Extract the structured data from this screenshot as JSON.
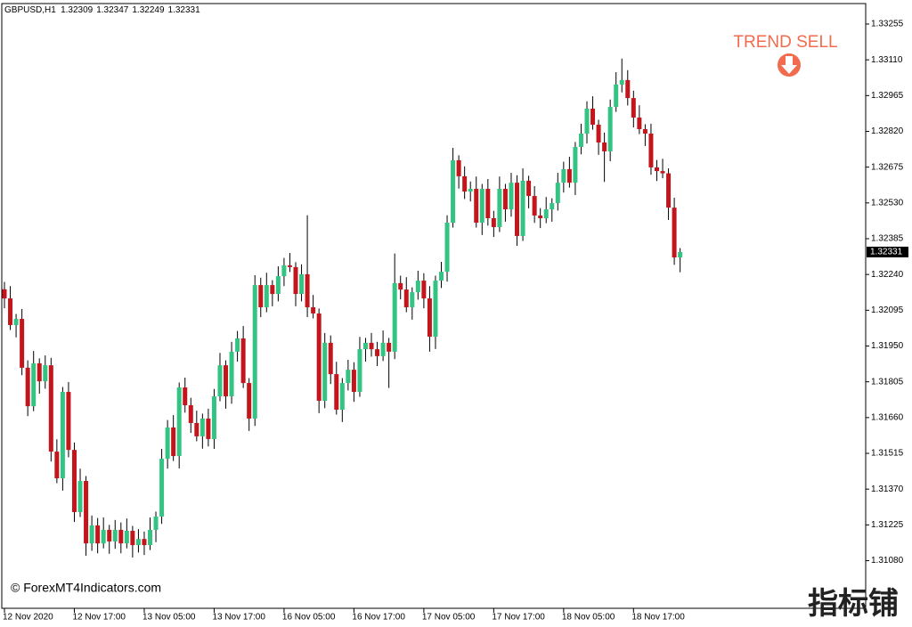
{
  "chart_data": {
    "type": "candlestick",
    "title": "GBPUSD,H1",
    "annotation": "TREND SELL",
    "watermark": "© ForexMT4Indicators.com",
    "corner_mark": "指标铺",
    "up_color": "#33c483",
    "down_color": "#c2161c",
    "wick_color": "#000000",
    "annotation_color": "#f26b4e",
    "ylim": [
      1.30887,
      1.33338
    ],
    "yticks": [
      1.33255,
      {
        "value": 1.3311,
        "label": "1.33110"
      },
      1.32965,
      {
        "value": 1.3282,
        "label": "1.32820"
      },
      1.32675,
      {
        "value": 1.3253,
        "label": "1.32530"
      },
      1.32385,
      {
        "value": 1.3224,
        "label": "1.32240"
      },
      1.32095,
      {
        "value": 1.3195,
        "label": "1.31950"
      },
      1.31805,
      {
        "value": 1.3166,
        "label": "1.31660"
      },
      1.31515,
      {
        "value": 1.3137,
        "label": "1.31370"
      },
      1.31225,
      {
        "value": 1.3108,
        "label": "1.31080"
      }
    ],
    "xticks": [
      {
        "value": 0,
        "label": "12 Nov 2020"
      },
      {
        "value": 12,
        "label": "12 Nov 17:00"
      },
      {
        "value": 24,
        "label": "13 Nov 05:00"
      },
      {
        "value": 36,
        "label": "13 Nov 17:00"
      },
      {
        "value": 48,
        "label": "16 Nov 05:00"
      },
      {
        "value": 60,
        "label": "16 Nov 17:00"
      },
      {
        "value": 72,
        "label": "17 Nov 05:00"
      },
      {
        "value": 84,
        "label": "17 Nov 17:00"
      },
      {
        "value": 96,
        "label": "18 Nov 05:00"
      },
      {
        "value": 108,
        "label": "18 Nov 17:00"
      }
    ],
    "ohlc": [
      [
        1.3218,
        1.3221,
        1.32103,
        1.32143
      ],
      [
        1.32143,
        1.32193,
        1.32015,
        1.32035
      ],
      [
        1.32035,
        1.3208,
        1.31985,
        1.3206
      ],
      [
        1.3206,
        1.321,
        1.31832,
        1.31862
      ],
      [
        1.31862,
        1.31892,
        1.31666,
        1.31706
      ],
      [
        1.31706,
        1.3193,
        1.31686,
        1.3188
      ],
      [
        1.3188,
        1.319,
        1.31757,
        1.31807
      ],
      [
        1.31807,
        1.31912,
        1.31777,
        1.31872
      ],
      [
        1.31872,
        1.31902,
        1.31482,
        1.31522
      ],
      [
        1.31522,
        1.31572,
        1.31394,
        1.31414
      ],
      [
        1.31414,
        1.31784,
        1.31364,
        1.31764
      ],
      [
        1.31764,
        1.31804,
        1.31499,
        1.31529
      ],
      [
        1.31529,
        1.31559,
        1.31237,
        1.31277
      ],
      [
        1.31277,
        1.31453,
        1.31257,
        1.31403
      ],
      [
        1.31403,
        1.31423,
        1.311,
        1.3115
      ],
      [
        1.3115,
        1.31263,
        1.3112,
        1.31223
      ],
      [
        1.31223,
        1.31253,
        1.3111,
        1.3115
      ],
      [
        1.3115,
        1.31255,
        1.3113,
        1.31205
      ],
      [
        1.31205,
        1.31225,
        1.31108,
        1.31158
      ],
      [
        1.31158,
        1.31245,
        1.31128,
        1.31205
      ],
      [
        1.31205,
        1.31235,
        1.3111,
        1.3115
      ],
      [
        1.3115,
        1.31251,
        1.3113,
        1.31201
      ],
      [
        1.31201,
        1.31221,
        1.31093,
        1.31143
      ],
      [
        1.31143,
        1.31208,
        1.31113,
        1.31168
      ],
      [
        1.31168,
        1.31198,
        1.31103,
        1.31143
      ],
      [
        1.31143,
        1.31255,
        1.31123,
        1.31205
      ],
      [
        1.31205,
        1.31279,
        1.31155,
        1.31259
      ],
      [
        1.31259,
        1.31533,
        1.31229,
        1.31493
      ],
      [
        1.31493,
        1.3165,
        1.31453,
        1.3162
      ],
      [
        1.3162,
        1.3167,
        1.31484,
        1.31504
      ],
      [
        1.31504,
        1.31802,
        1.31454,
        1.31782
      ],
      [
        1.31782,
        1.31822,
        1.3168,
        1.3171
      ],
      [
        1.3171,
        1.3174,
        1.31598,
        1.31638
      ],
      [
        1.31638,
        1.31688,
        1.31564,
        1.31584
      ],
      [
        1.31584,
        1.31676,
        1.31534,
        1.31656
      ],
      [
        1.31656,
        1.31696,
        1.31543,
        1.31573
      ],
      [
        1.31573,
        1.31776,
        1.31533,
        1.31746
      ],
      [
        1.31746,
        1.31922,
        1.31726,
        1.31872
      ],
      [
        1.31872,
        1.31892,
        1.31696,
        1.31746
      ],
      [
        1.31746,
        1.31967,
        1.31716,
        1.31927
      ],
      [
        1.31927,
        1.32011,
        1.31887,
        1.31981
      ],
      [
        1.31981,
        1.32031,
        1.3178,
        1.318
      ],
      [
        1.318,
        1.3182,
        1.31606,
        1.31656
      ],
      [
        1.31656,
        1.32237,
        1.31626,
        1.32197
      ],
      [
        1.32197,
        1.32227,
        1.32067,
        1.32107
      ],
      [
        1.32107,
        1.32247,
        1.32087,
        1.32197
      ],
      [
        1.32197,
        1.32217,
        1.32111,
        1.32161
      ],
      [
        1.32161,
        1.32273,
        1.32131,
        1.32233
      ],
      [
        1.32233,
        1.32307,
        1.32193,
        1.32277
      ],
      [
        1.32277,
        1.32327,
        1.3225,
        1.3227
      ],
      [
        1.3227,
        1.3229,
        1.32111,
        1.32161
      ],
      [
        1.32161,
        1.32281,
        1.32131,
        1.32241
      ],
      [
        1.32241,
        1.3248,
        1.32067,
        1.32107
      ],
      [
        1.32107,
        1.32157,
        1.32062,
        1.32082
      ],
      [
        1.32082,
        1.32102,
        1.31678,
        1.31728
      ],
      [
        1.31728,
        1.32003,
        1.31698,
        1.31963
      ],
      [
        1.31963,
        1.31993,
        1.31796,
        1.31836
      ],
      [
        1.31836,
        1.31886,
        1.31672,
        1.31692
      ],
      [
        1.31692,
        1.3182,
        1.31642,
        1.318
      ],
      [
        1.318,
        1.31894,
        1.3177,
        1.31854
      ],
      [
        1.31854,
        1.31884,
        1.31724,
        1.31764
      ],
      [
        1.31764,
        1.31987,
        1.31744,
        1.31937
      ],
      [
        1.31937,
        1.31983,
        1.31887,
        1.31963
      ],
      [
        1.31963,
        1.32003,
        1.31907,
        1.31937
      ],
      [
        1.31937,
        1.31967,
        1.31869,
        1.31909
      ],
      [
        1.31909,
        1.32013,
        1.31889,
        1.31963
      ],
      [
        1.31963,
        1.31983,
        1.3178,
        1.31927
      ],
      [
        1.31927,
        1.32325,
        1.31897,
        1.32205
      ],
      [
        1.32205,
        1.32235,
        1.32139,
        1.32179
      ],
      [
        1.32179,
        1.32229,
        1.32087,
        1.32107
      ],
      [
        1.32107,
        1.32188,
        1.32057,
        1.32168
      ],
      [
        1.32168,
        1.32255,
        1.32138,
        1.32215
      ],
      [
        1.32215,
        1.32245,
        1.32103,
        1.32143
      ],
      [
        1.32143,
        1.32193,
        1.31927,
        1.31988
      ],
      [
        1.31988,
        1.32235,
        1.31938,
        1.32215
      ],
      [
        1.32215,
        1.32291,
        1.32185,
        1.32251
      ],
      [
        1.32251,
        1.3248,
        1.32211,
        1.3245
      ],
      [
        1.3245,
        1.32753,
        1.3243,
        1.32703
      ],
      [
        1.32703,
        1.32723,
        1.32588,
        1.32638
      ],
      [
        1.32638,
        1.32678,
        1.32546,
        1.32576
      ],
      [
        1.32576,
        1.32617,
        1.32536,
        1.32587
      ],
      [
        1.32587,
        1.32637,
        1.3243,
        1.3245
      ],
      [
        1.3245,
        1.32607,
        1.324,
        1.32587
      ],
      [
        1.32587,
        1.32627,
        1.32438,
        1.32468
      ],
      [
        1.32468,
        1.32498,
        1.32392,
        1.32432
      ],
      [
        1.32432,
        1.32637,
        1.32412,
        1.32587
      ],
      [
        1.32587,
        1.32607,
        1.32454,
        1.32504
      ],
      [
        1.32504,
        1.32652,
        1.32474,
        1.32612
      ],
      [
        1.32612,
        1.32642,
        1.32356,
        1.32396
      ],
      [
        1.32396,
        1.3267,
        1.32376,
        1.3262
      ],
      [
        1.3262,
        1.3264,
        1.32508,
        1.32558
      ],
      [
        1.32558,
        1.32598,
        1.32449,
        1.32479
      ],
      [
        1.32479,
        1.32509,
        1.32428,
        1.32468
      ],
      [
        1.32468,
        1.32554,
        1.32448,
        1.32504
      ],
      [
        1.32504,
        1.32549,
        1.32454,
        1.32529
      ],
      [
        1.32529,
        1.32652,
        1.32499,
        1.32612
      ],
      [
        1.32612,
        1.32697,
        1.32572,
        1.32667
      ],
      [
        1.32667,
        1.32717,
        1.32592,
        1.32612
      ],
      [
        1.32612,
        1.32777,
        1.32562,
        1.32757
      ],
      [
        1.32757,
        1.32851,
        1.32727,
        1.32811
      ],
      [
        1.32811,
        1.32942,
        1.32771,
        1.32912
      ],
      [
        1.32912,
        1.32962,
        1.32827,
        1.32847
      ],
      [
        1.32847,
        1.32867,
        1.32725,
        1.32775
      ],
      [
        1.32775,
        1.32815,
        1.32615,
        1.32739
      ],
      [
        1.32739,
        1.32949,
        1.32699,
        1.32919
      ],
      [
        1.32919,
        1.3306,
        1.32899,
        1.3301
      ],
      [
        1.3301,
        1.33115,
        1.32978,
        1.33028
      ],
      [
        1.33028,
        1.33068,
        1.32925,
        1.32955
      ],
      [
        1.32955,
        1.32985,
        1.32836,
        1.32876
      ],
      [
        1.32876,
        1.32926,
        1.32809,
        1.32829
      ],
      [
        1.32829,
        1.32849,
        1.32761,
        1.32811
      ],
      [
        1.32811,
        1.32851,
        1.32644,
        1.32674
      ],
      [
        1.32674,
        1.32704,
        1.32619,
        1.32659
      ],
      [
        1.32659,
        1.32709,
        1.3263,
        1.3265
      ],
      [
        1.3265,
        1.3267,
        1.32461,
        1.32511
      ],
      [
        1.32511,
        1.32551,
        1.32279,
        1.32309
      ],
      [
        1.32309,
        1.32347,
        1.32249,
        1.32331
      ]
    ]
  }
}
